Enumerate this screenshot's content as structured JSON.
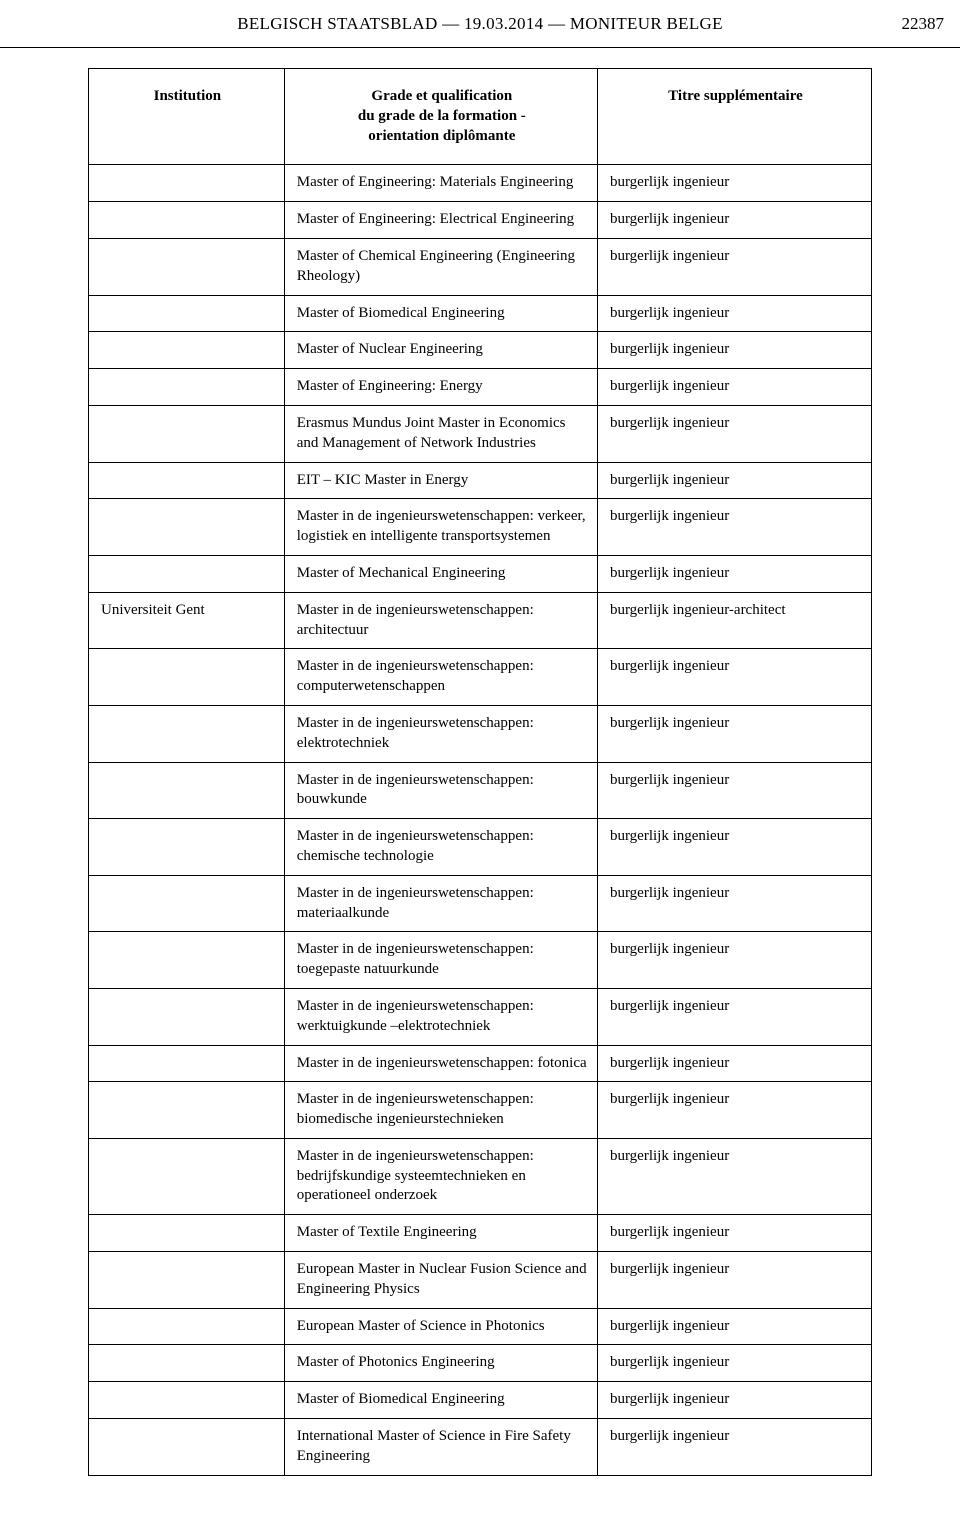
{
  "header": {
    "title": "BELGISCH STAATSBLAD — 19.03.2014 — MONITEUR BELGE",
    "page_number": "22387"
  },
  "table": {
    "columns": {
      "institution": "Institution",
      "grade": "Grade et qualification\ndu grade de la formation -\norientation diplômante",
      "titre": "Titre supplémentaire"
    },
    "rows": [
      {
        "institution": "",
        "grade": "Master of Engineering: Materials Engineering",
        "titre": "burgerlijk ingenieur"
      },
      {
        "institution": "",
        "grade": "Master of Engineering: Electrical Engineering",
        "titre": "burgerlijk ingenieur"
      },
      {
        "institution": "",
        "grade": "Master of Chemical Engineering (Engineering Rheology)",
        "titre": "burgerlijk ingenieur"
      },
      {
        "institution": "",
        "grade": "Master of Biomedical Engineering",
        "titre": "burgerlijk ingenieur"
      },
      {
        "institution": "",
        "grade": "Master of Nuclear Engineering",
        "titre": "burgerlijk ingenieur"
      },
      {
        "institution": "",
        "grade": "Master of Engineering: Energy",
        "titre": "burgerlijk ingenieur"
      },
      {
        "institution": "",
        "grade": "Erasmus Mundus Joint Master in Economics and Management of Network Industries",
        "titre": "burgerlijk ingenieur"
      },
      {
        "institution": "",
        "grade": "EIT – KIC Master in Energy",
        "titre": "burgerlijk ingenieur"
      },
      {
        "institution": "",
        "grade": "Master in de ingenieurswetenschappen: verkeer, logistiek en intelligente transportsystemen",
        "titre": "burgerlijk ingenieur"
      },
      {
        "institution": "",
        "grade": "Master of Mechanical Engineering",
        "titre": "burgerlijk ingenieur"
      },
      {
        "institution": "Universiteit Gent",
        "grade": "Master in de ingenieurswetenschappen: architectuur",
        "titre": "burgerlijk ingenieur-architect"
      },
      {
        "institution": "",
        "grade": "Master in de ingenieurswetenschappen: computerwetenschappen",
        "titre": "burgerlijk ingenieur"
      },
      {
        "institution": "",
        "grade": "Master in de ingenieurswetenschappen: elektrotechniek",
        "titre": "burgerlijk ingenieur"
      },
      {
        "institution": "",
        "grade": "Master in de ingenieurswetenschappen: bouwkunde",
        "titre": "burgerlijk ingenieur"
      },
      {
        "institution": "",
        "grade": "Master in de ingenieurswetenschappen: chemische technologie",
        "titre": "burgerlijk ingenieur"
      },
      {
        "institution": "",
        "grade": "Master in de ingenieurswetenschappen: materiaalkunde",
        "titre": "burgerlijk ingenieur"
      },
      {
        "institution": "",
        "grade": "Master in de ingenieurswetenschappen: toegepaste natuurkunde",
        "titre": "burgerlijk ingenieur"
      },
      {
        "institution": "",
        "grade": "Master in de ingenieurswetenschappen: werktuigkunde –elektrotechniek",
        "titre": "burgerlijk ingenieur"
      },
      {
        "institution": "",
        "grade": "Master in de ingenieurswetenschappen: fotonica",
        "titre": "burgerlijk ingenieur"
      },
      {
        "institution": "",
        "grade": "Master in de ingenieurswetenschappen: biomedische ingenieurstechnieken",
        "titre": "burgerlijk ingenieur"
      },
      {
        "institution": "",
        "grade": "Master in de ingenieurswetenschappen: bedrijfskundige systeemtechnieken en operationeel onderzoek",
        "titre": "burgerlijk ingenieur"
      },
      {
        "institution": "",
        "grade": "Master of Textile Engineering",
        "titre": "burgerlijk ingenieur"
      },
      {
        "institution": "",
        "grade": "European Master in Nuclear Fusion Science and Engineering Physics",
        "titre": "burgerlijk ingenieur"
      },
      {
        "institution": "",
        "grade": "European Master of Science in Photonics",
        "titre": "burgerlijk ingenieur"
      },
      {
        "institution": "",
        "grade": "Master of Photonics Engineering",
        "titre": "burgerlijk ingenieur"
      },
      {
        "institution": "",
        "grade": "Master of Biomedical Engineering",
        "titre": "burgerlijk ingenieur"
      },
      {
        "institution": "",
        "grade": "International Master of Science in Fire Safety Engineering",
        "titre": "burgerlijk ingenieur"
      }
    ]
  }
}
